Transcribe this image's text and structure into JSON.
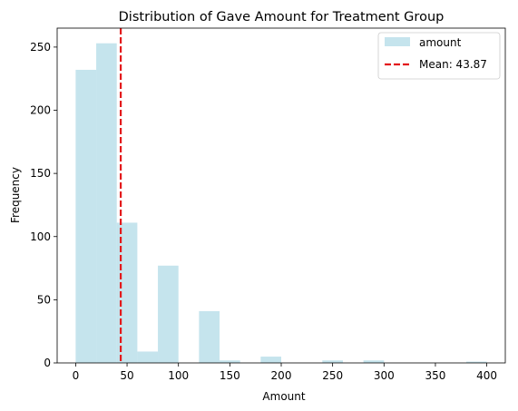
{
  "chart_data": {
    "type": "bar",
    "subtype": "histogram",
    "title": "Distribution of Gave Amount for Treatment Group",
    "xlabel": "Amount",
    "ylabel": "Frequency",
    "xlim": [
      -18,
      418
    ],
    "ylim": [
      0,
      265
    ],
    "xticks": [
      "0",
      "50",
      "100",
      "150",
      "200",
      "250",
      "300",
      "350",
      "400"
    ],
    "yticks": [
      "0",
      "50",
      "100",
      "150",
      "200",
      "250"
    ],
    "bin_width": 20,
    "bins": [
      {
        "start": 0,
        "end": 20,
        "count": 232
      },
      {
        "start": 20,
        "end": 40,
        "count": 253
      },
      {
        "start": 40,
        "end": 60,
        "count": 111
      },
      {
        "start": 60,
        "end": 80,
        "count": 9
      },
      {
        "start": 80,
        "end": 100,
        "count": 77
      },
      {
        "start": 100,
        "end": 120,
        "count": 0
      },
      {
        "start": 120,
        "end": 140,
        "count": 41
      },
      {
        "start": 140,
        "end": 160,
        "count": 2
      },
      {
        "start": 160,
        "end": 180,
        "count": 0
      },
      {
        "start": 180,
        "end": 200,
        "count": 5
      },
      {
        "start": 200,
        "end": 220,
        "count": 0
      },
      {
        "start": 220,
        "end": 240,
        "count": 0
      },
      {
        "start": 240,
        "end": 260,
        "count": 2
      },
      {
        "start": 260,
        "end": 280,
        "count": 0
      },
      {
        "start": 280,
        "end": 300,
        "count": 2
      },
      {
        "start": 300,
        "end": 320,
        "count": 0
      },
      {
        "start": 320,
        "end": 340,
        "count": 0
      },
      {
        "start": 340,
        "end": 360,
        "count": 0
      },
      {
        "start": 360,
        "end": 380,
        "count": 0
      },
      {
        "start": 380,
        "end": 400,
        "count": 1
      }
    ],
    "series": [
      {
        "name": "amount",
        "color": "#add8e6",
        "opacity": 0.7
      }
    ],
    "mean_line": {
      "value": 43.87,
      "label": "Mean: 43.87",
      "color": "#e31a1c",
      "style": "dashed"
    },
    "legend": {
      "placement": "upper right",
      "entries": [
        "amount",
        "Mean: 43.87"
      ]
    },
    "grid": false
  }
}
